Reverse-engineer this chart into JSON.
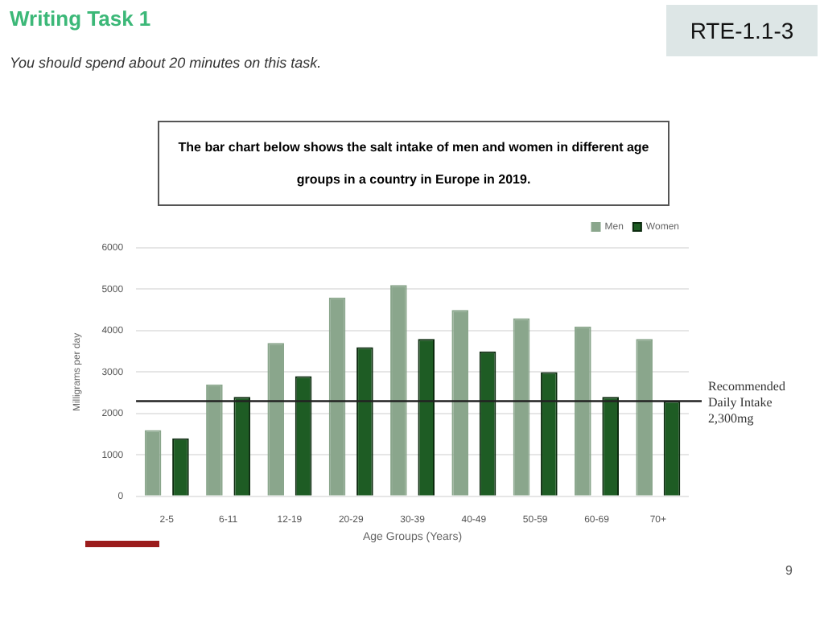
{
  "chart_data": {
    "type": "bar",
    "title": "The bar chart below shows the salt intake of men and women in different age groups in a country in Europe in 2019.",
    "xlabel": "Age Groups (Years)",
    "ylabel": "Milligrams per day",
    "categories": [
      "2-5",
      "6-11",
      "12-19",
      "20-29",
      "30-39",
      "40-49",
      "50-59",
      "60-69",
      "70+"
    ],
    "series": [
      {
        "name": "Men",
        "color": "#8aa68c",
        "values": [
          1600,
          2700,
          3700,
          4800,
          5100,
          4500,
          4300,
          4100,
          3800
        ]
      },
      {
        "name": "Women",
        "color": "#1e5c24",
        "values": [
          1400,
          2400,
          2900,
          3600,
          3800,
          3500,
          3000,
          2400,
          2300
        ]
      }
    ],
    "ylim": [
      0,
      6000
    ],
    "yticks": [
      0,
      1000,
      2000,
      3000,
      4000,
      5000,
      6000
    ],
    "grid": "y",
    "legend": "top right",
    "ref_lines": [
      {
        "axis": "y",
        "value": 2300,
        "label": "Recommended Daily Intake 2,300mg",
        "color": "#222222"
      }
    ],
    "annotations": [
      "Writing Task 1",
      "You should spend about 20 minutes on this task.",
      "RTE-1.1-3",
      "9"
    ]
  }
}
